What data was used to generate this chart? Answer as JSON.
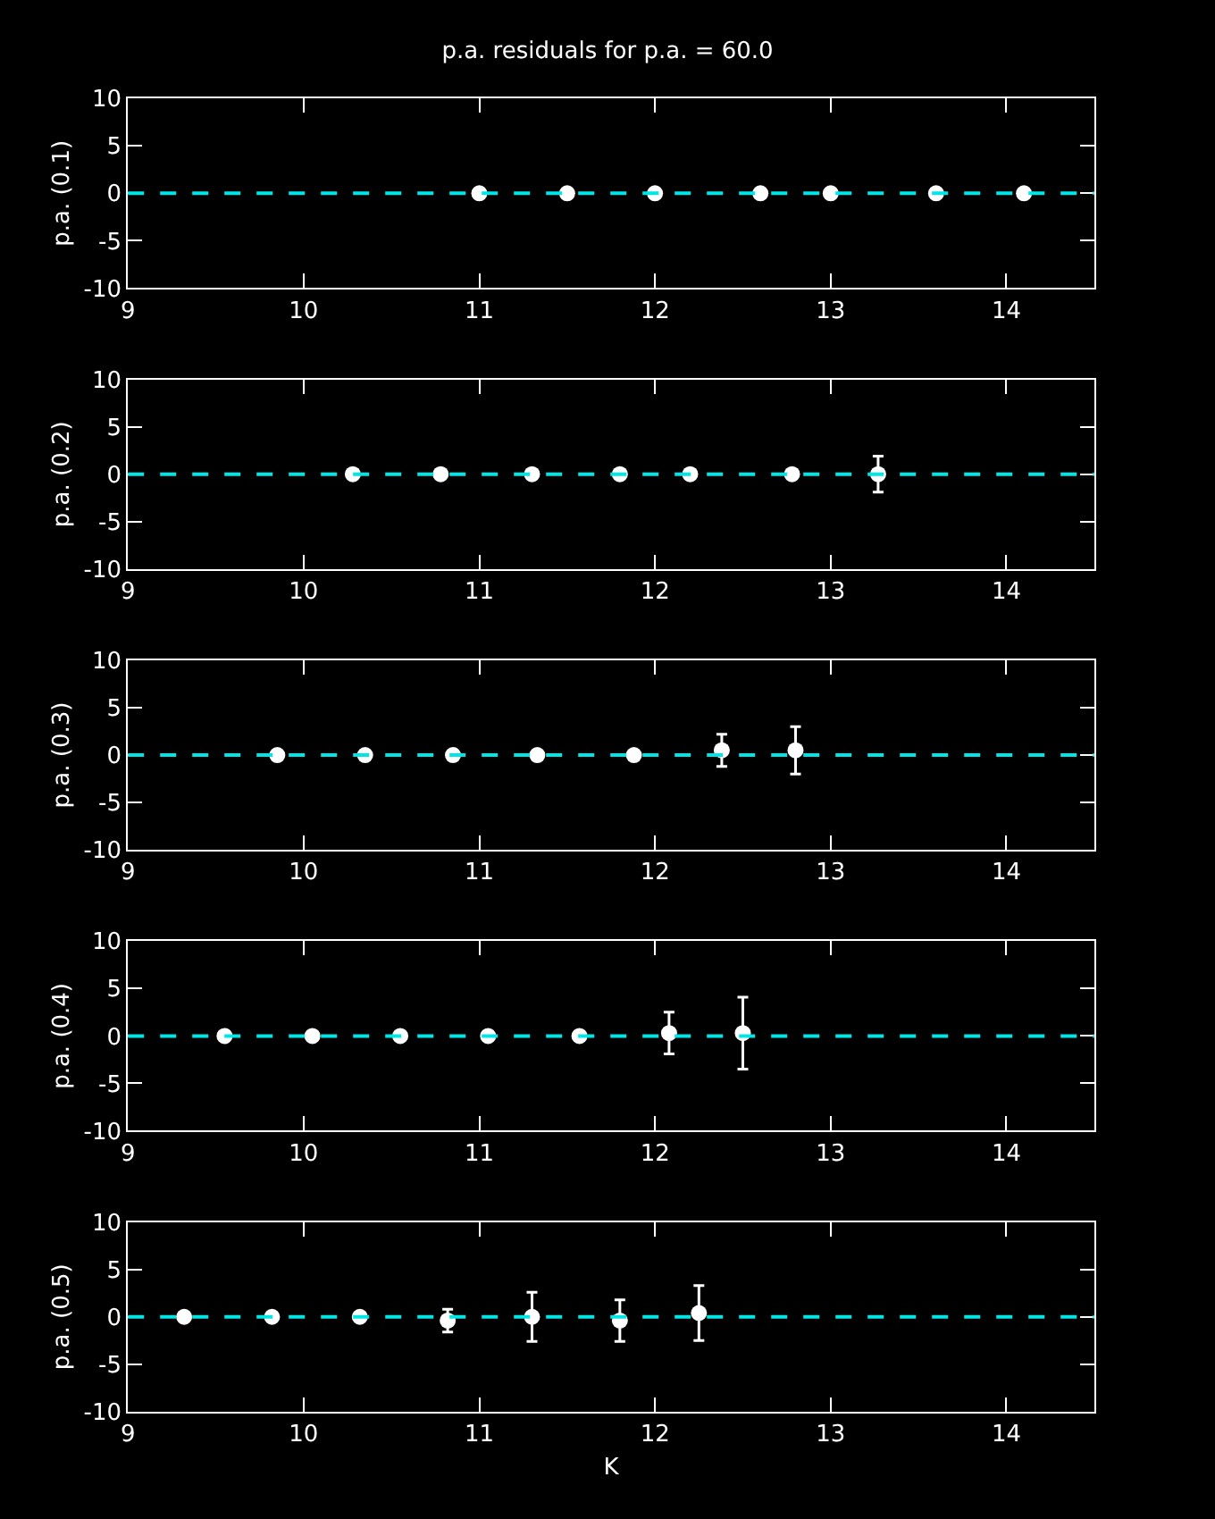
{
  "chart_data": [
    {
      "type": "scatter",
      "title": "p.a. residuals for p.a. = 60.0",
      "ylabel": "p.a. (0.1)",
      "x": [
        11.0,
        11.5,
        12.0,
        12.6,
        13.0,
        13.6,
        14.1
      ],
      "values": [
        0,
        0,
        0,
        0,
        0,
        0,
        0
      ],
      "color": "#ffffff",
      "marker": "circle",
      "xlim": [
        9,
        14.5
      ],
      "xticks": [
        9,
        10,
        11,
        12,
        13,
        14
      ],
      "ylim": [
        -10,
        10
      ],
      "yticks": [
        -10,
        -5,
        0,
        5,
        10
      ],
      "grid": false,
      "ref_lines": [
        {
          "axis": "y",
          "value": 0,
          "color": "#00e5e5",
          "line_style": "dashed"
        }
      ]
    },
    {
      "type": "scatter",
      "ylabel": "p.a. (0.2)",
      "x": [
        10.28,
        10.78,
        11.3,
        11.8,
        12.2,
        12.78,
        13.27
      ],
      "values": [
        0,
        0,
        0,
        0,
        0,
        0,
        0
      ],
      "errors": [
        null,
        null,
        null,
        null,
        null,
        null,
        1.9
      ],
      "color": "#ffffff",
      "marker": "circle",
      "xlim": [
        9,
        14.5
      ],
      "xticks": [
        9,
        10,
        11,
        12,
        13,
        14
      ],
      "ylim": [
        -10,
        10
      ],
      "yticks": [
        -10,
        -5,
        0,
        5,
        10
      ],
      "grid": false,
      "ref_lines": [
        {
          "axis": "y",
          "value": 0,
          "color": "#00e5e5",
          "line_style": "dashed"
        }
      ]
    },
    {
      "type": "scatter",
      "ylabel": "p.a. (0.3)",
      "x": [
        9.85,
        10.35,
        10.85,
        11.33,
        11.88,
        12.38,
        12.8
      ],
      "values": [
        0,
        0,
        0,
        0,
        0,
        0.5,
        0.5
      ],
      "errors": [
        null,
        null,
        null,
        null,
        null,
        1.7,
        2.5
      ],
      "color": "#ffffff",
      "marker": "circle",
      "xlim": [
        9,
        14.5
      ],
      "xticks": [
        9,
        10,
        11,
        12,
        13,
        14
      ],
      "ylim": [
        -10,
        10
      ],
      "yticks": [
        -10,
        -5,
        0,
        5,
        10
      ],
      "grid": false,
      "ref_lines": [
        {
          "axis": "y",
          "value": 0,
          "color": "#00e5e5",
          "line_style": "dashed"
        }
      ]
    },
    {
      "type": "scatter",
      "ylabel": "p.a. (0.4)",
      "x": [
        9.55,
        10.05,
        10.55,
        11.05,
        11.57,
        12.08,
        12.5
      ],
      "values": [
        0,
        0,
        0,
        0,
        0,
        0.3,
        0.3
      ],
      "errors": [
        null,
        null,
        null,
        null,
        null,
        2.2,
        3.8
      ],
      "color": "#ffffff",
      "marker": "circle",
      "xlim": [
        9,
        14.5
      ],
      "xticks": [
        9,
        10,
        11,
        12,
        13,
        14
      ],
      "ylim": [
        -10,
        10
      ],
      "yticks": [
        -10,
        -5,
        0,
        5,
        10
      ],
      "grid": false,
      "ref_lines": [
        {
          "axis": "y",
          "value": 0,
          "color": "#00e5e5",
          "line_style": "dashed"
        }
      ]
    },
    {
      "type": "scatter",
      "ylabel": "p.a. (0.5)",
      "xlabel": "K",
      "x": [
        9.32,
        9.82,
        10.32,
        10.82,
        11.3,
        11.8,
        12.25
      ],
      "values": [
        0,
        0,
        0,
        -0.4,
        0,
        -0.4,
        0.4
      ],
      "errors": [
        null,
        null,
        null,
        1.2,
        2.6,
        2.2,
        2.9
      ],
      "color": "#ffffff",
      "marker": "circle",
      "xlim": [
        9,
        14.5
      ],
      "xticks": [
        9,
        10,
        11,
        12,
        13,
        14
      ],
      "ylim": [
        -10,
        10
      ],
      "yticks": [
        -10,
        -5,
        0,
        5,
        10
      ],
      "grid": false,
      "ref_lines": [
        {
          "axis": "y",
          "value": 0,
          "color": "#00e5e5",
          "line_style": "dashed"
        }
      ]
    }
  ]
}
